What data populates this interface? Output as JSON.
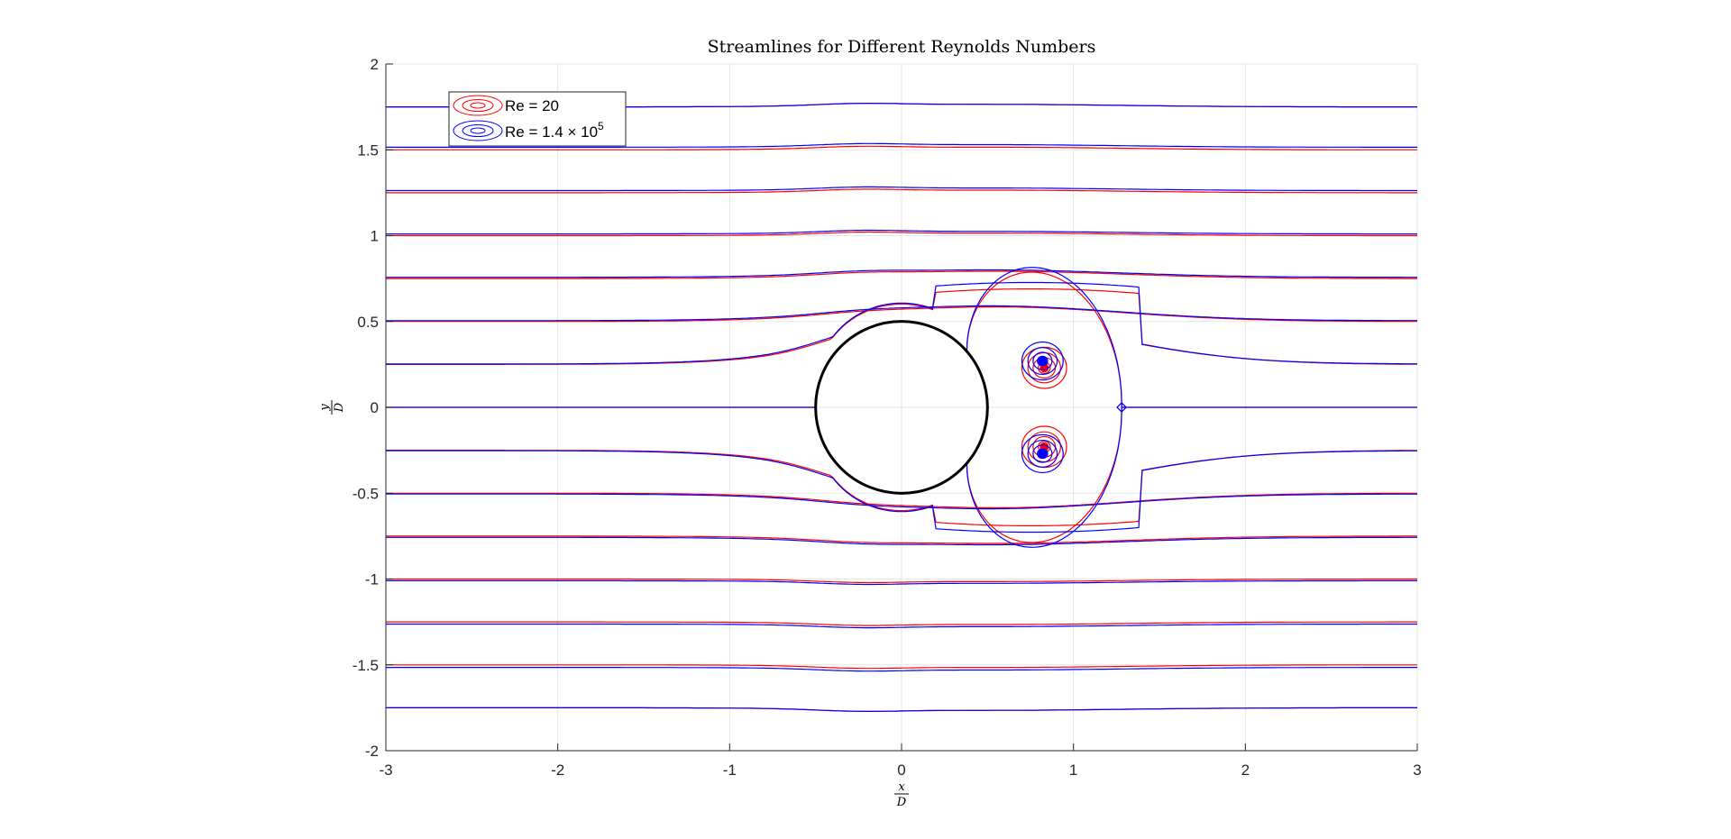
{
  "chart_data": {
    "type": "line",
    "title": "Streamlines for Different Reynolds Numbers",
    "xlabel_num": "x",
    "xlabel_den": "D",
    "ylabel_num": "y",
    "ylabel_den": "D",
    "xlim": [
      -3,
      3
    ],
    "ylim": [
      -2,
      2
    ],
    "xticks": [
      -3,
      -2,
      -1,
      0,
      1,
      2,
      3
    ],
    "yticks": [
      -2,
      -1.5,
      -1,
      -0.5,
      0,
      0.5,
      1,
      1.5,
      2
    ],
    "xtick_labels": [
      "-3",
      "-2",
      "-1",
      "0",
      "1",
      "2",
      "3"
    ],
    "ytick_labels": [
      "-2",
      "-1.5",
      "-1",
      "-0.5",
      "0",
      "0.5",
      "1",
      "1.5",
      "2"
    ],
    "grid": true,
    "legend_position": "top-left",
    "cylinder": {
      "center": [
        0,
        0
      ],
      "radius": 0.5,
      "color": "#000000"
    },
    "streamline_offsets": [
      0.25,
      0.5,
      0.75,
      1.0,
      1.25,
      1.5,
      1.75
    ],
    "series": [
      {
        "name": "Re = 20",
        "color": "#ff0000",
        "bubble_end_x": 1.28,
        "bubble_peak_y": 0.69,
        "vortex_center": [
          0.83,
          0.23
        ],
        "vortex_radii": [
          0.13,
          0.095,
          0.065,
          0.035
        ]
      },
      {
        "name": "Re = 1.4 × 10",
        "name_superscript": "5",
        "color": "#0000ff",
        "bubble_end_x": 1.28,
        "bubble_peak_y": 0.72,
        "vortex_center": [
          0.82,
          0.27
        ],
        "vortex_radii": [
          0.12,
          0.085,
          0.055,
          0.03
        ]
      }
    ]
  }
}
